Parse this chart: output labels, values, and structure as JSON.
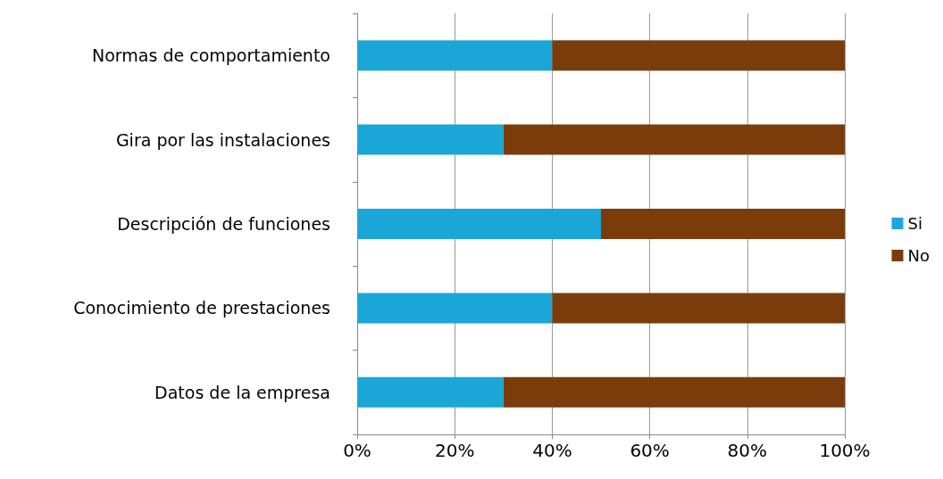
{
  "chart_data": {
    "type": "bar",
    "orientation": "horizontal",
    "stacked": true,
    "categories": [
      "Normas de comportamiento",
      "Gira por las instalaciones",
      "Descripción de funciones",
      "Conocimiento de prestaciones",
      "Datos de la empresa"
    ],
    "series": [
      {
        "name": "Si",
        "color": "#1ba6d8",
        "values": [
          40,
          30,
          50,
          40,
          30
        ]
      },
      {
        "name": "No",
        "color": "#7b3c0c",
        "values": [
          60,
          70,
          50,
          60,
          70
        ]
      }
    ],
    "xlim": [
      0,
      100
    ],
    "xticks": [
      {
        "value": 0,
        "label": "0%"
      },
      {
        "value": 20,
        "label": "20%"
      },
      {
        "value": 40,
        "label": "40%"
      },
      {
        "value": 60,
        "label": "60%"
      },
      {
        "value": 80,
        "label": "80%"
      },
      {
        "value": 100,
        "label": "100%"
      }
    ],
    "grid": "x",
    "legend": "right"
  }
}
